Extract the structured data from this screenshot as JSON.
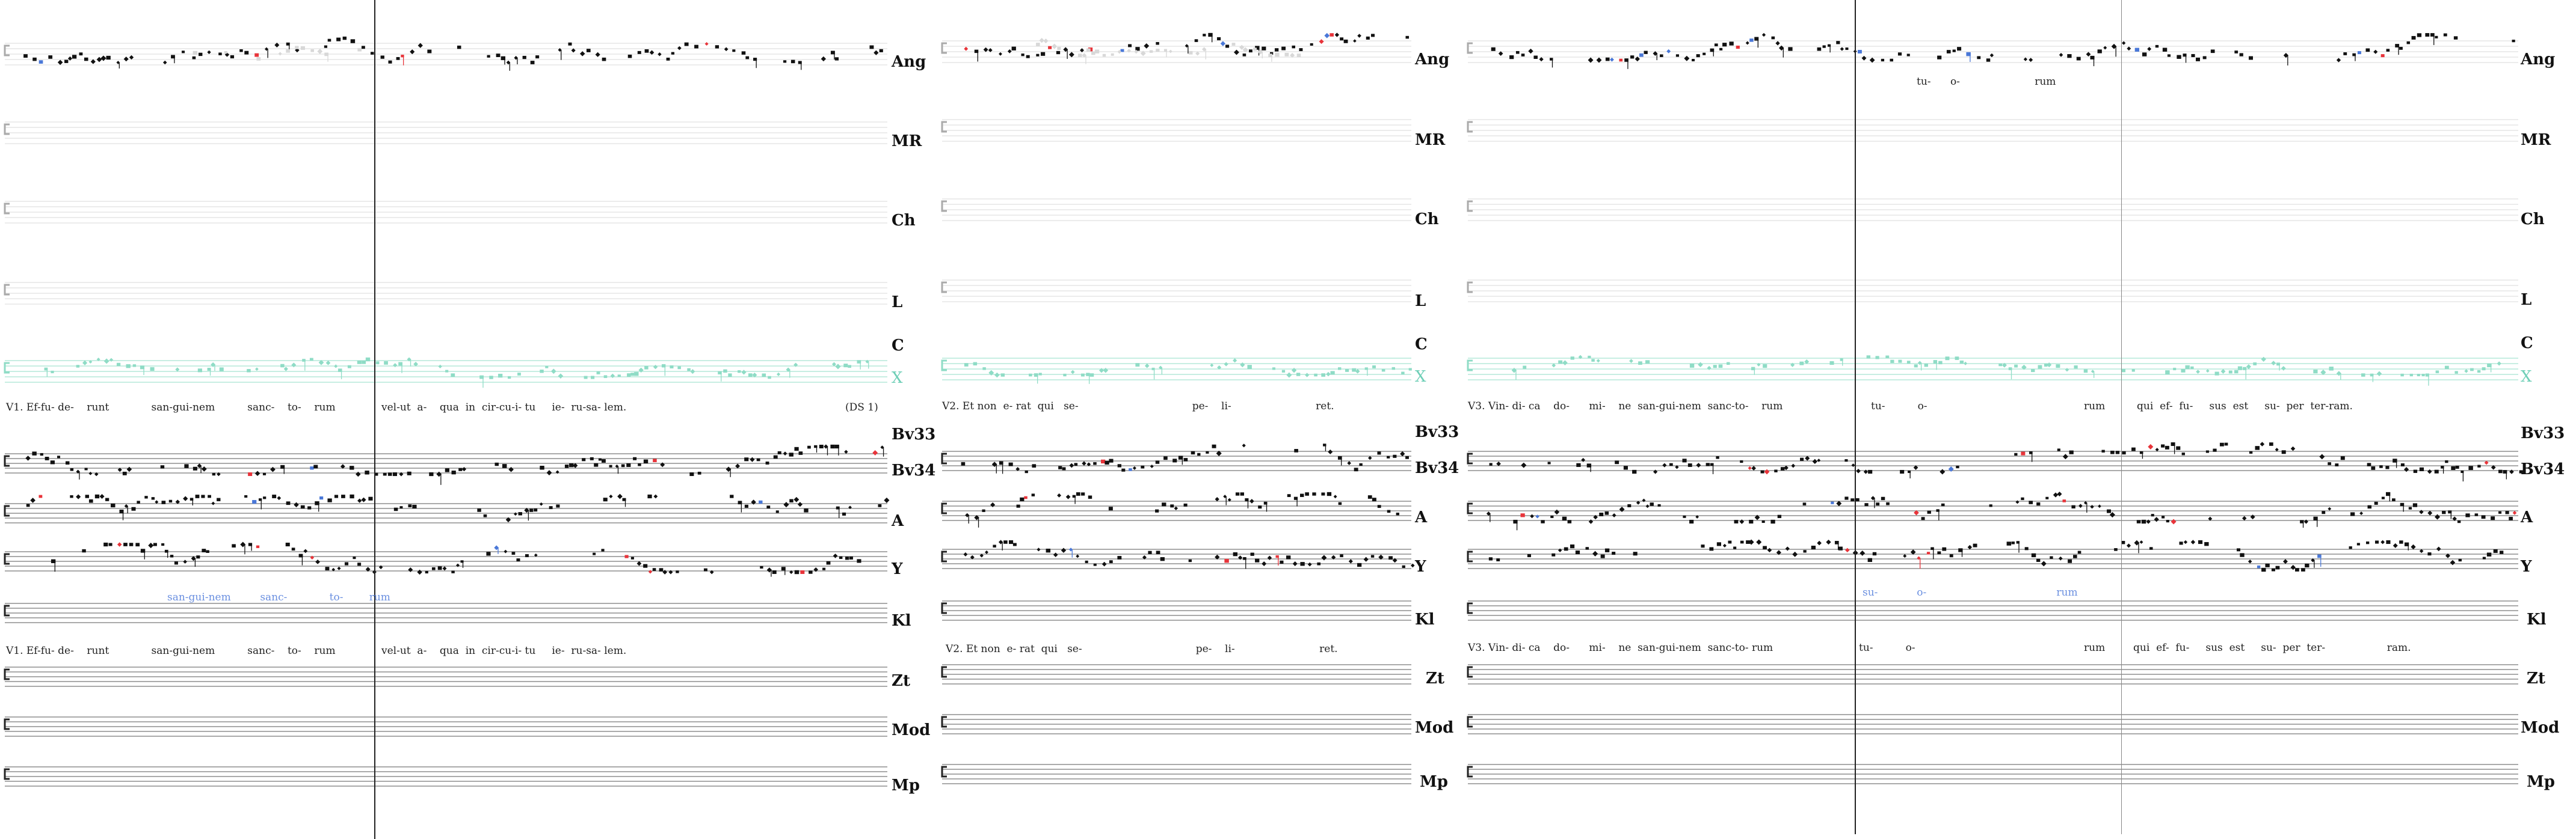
{
  "panels": [
    {
      "id": "left",
      "top_labels": [
        "Ang",
        "MR",
        "Ch",
        "L",
        "C",
        "X"
      ],
      "verse_top": "V1. Ef-fu- de-    runt             san-gui-nem          sanc-    to-    rum",
      "verse_top_b": "vel-ut  a-    qua  in  cir-cu-i- tu     ie-  ru-sa- lem.",
      "ds_marker": "(DS 1)",
      "bottom_labels": [
        "Bv33",
        "Bv34",
        "A",
        "Y",
        "Kl",
        "Zt",
        "Mod",
        "Mp"
      ],
      "blue_text": "san-gui-nem         sanc-             to-        rum",
      "verse_bottom": "V1. Ef-fu- de-    runt             san-gui-nem          sanc-    to-    rum",
      "verse_bottom_b": "vel-ut  a-    qua  in  cir-cu-i- tu     ie-  ru-sa- lem."
    },
    {
      "id": "middle",
      "top_labels": [
        "Ang",
        "MR",
        "Ch",
        "L",
        "C",
        "X"
      ],
      "verse_top": "V2. Et non  e- rat  qui   se-                                   pe-    li-                          ret.",
      "bottom_labels": [
        "Bv33",
        "Bv34",
        "A",
        "Y",
        "Kl",
        "Zt",
        "Mod",
        "Mp"
      ],
      "verse_bottom": "V2. Et non  e- rat  qui   se-                                   pe-    li-                          ret."
    },
    {
      "id": "right",
      "top_labels": [
        "Ang",
        "MR",
        "Ch",
        "L",
        "C",
        "X"
      ],
      "top_lyrics": "tu-      o-                       rum",
      "verse_top": "V3. Vin- di- ca    do-      mi-    ne  san-gui-nem  sanc-to-    rum",
      "verse_top_b": "tu-          o-",
      "verse_top_c": "rum",
      "verse_top_d": "qui  ef-  fu-     sus  est     su-  per  ter-ram.",
      "bottom_labels": [
        "Bv33",
        "Bv34",
        "A",
        "Y",
        "Kl",
        "Zt",
        "Mod",
        "Mp"
      ],
      "blue_text": "su-            o-                                        rum",
      "verse_bottom": "V3. Vin- di- ca    do-      mi-    ne  san-gui-nem  sanc-to- rum",
      "verse_bottom_b": "tu-          o-",
      "verse_bottom_c": "rum",
      "verse_bottom_d": "qui  ef-  fu-     sus  est     su-  per  ter-                   ram."
    }
  ],
  "colors": {
    "staff": "#d9d9d9",
    "staff_dark": "#555555",
    "note": "#111111",
    "ghost": "#d8d8d8",
    "teal": "#8fdcc6",
    "red": "#e8343a",
    "blue": "#4a78d8"
  },
  "icons": [
    "clef-icon",
    "neume-note"
  ]
}
